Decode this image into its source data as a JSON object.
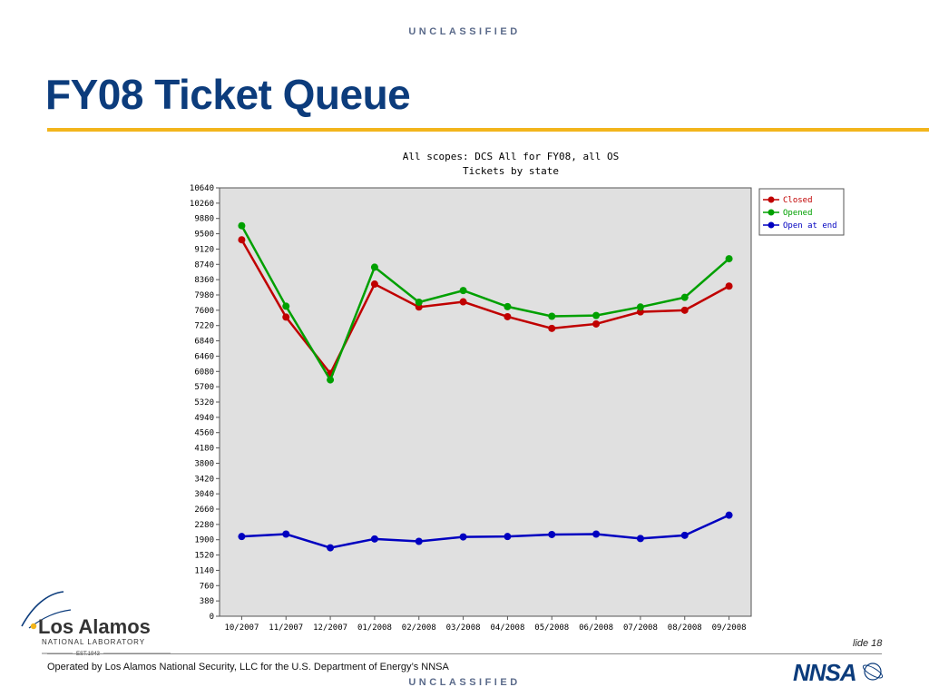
{
  "slide": {
    "classification_top": "UNCLASSIFIED",
    "classification_bottom": "UNCLASSIFIED",
    "title": "FY08 Ticket Queue",
    "slide_number": "lide 18",
    "footer_text": "Operated by Los Alamos National Security, LLC for the U.S. Department of Energy’s NNSA",
    "accent_color": "#f2b51c",
    "title_color": "#0c3c7c"
  },
  "logo": {
    "name": "Los Alamos",
    "sub": "NATIONAL LABORATORY",
    "est": "EST.1943"
  },
  "nnsa_logo": {
    "text": "NNSA"
  },
  "chart_data": {
    "type": "line",
    "title": "All scopes: DCS All for FY08, all OS",
    "subtitle": "Tickets by state",
    "xlabel": "",
    "ylabel": "",
    "categories": [
      "10/2007",
      "11/2007",
      "12/2007",
      "01/2008",
      "02/2008",
      "03/2008",
      "04/2008",
      "05/2008",
      "06/2008",
      "07/2008",
      "08/2008",
      "09/2008"
    ],
    "yticks": [
      0,
      380,
      760,
      1140,
      1520,
      1900,
      2280,
      2660,
      3040,
      3420,
      3800,
      4180,
      4560,
      4940,
      5320,
      5700,
      6080,
      6460,
      6840,
      7220,
      7600,
      7980,
      8360,
      8740,
      9120,
      9500,
      9880,
      10260,
      10640
    ],
    "ylim": [
      0,
      10640
    ],
    "grid": false,
    "legend_position": "top-right outside",
    "background": "#e0e0e0",
    "series": [
      {
        "name": "Closed",
        "color": "#c00000",
        "values": [
          9350,
          7430,
          6030,
          8250,
          7680,
          7810,
          7440,
          7150,
          7260,
          7560,
          7600,
          8200
        ]
      },
      {
        "name": "Opened",
        "color": "#00a000",
        "values": [
          9700,
          7700,
          5870,
          8670,
          7800,
          8090,
          7690,
          7450,
          7470,
          7680,
          7920,
          8880
        ]
      },
      {
        "name": "Open at end",
        "color": "#0000c0",
        "values": [
          1980,
          2040,
          1700,
          1920,
          1860,
          1970,
          1980,
          2030,
          2040,
          1930,
          2010,
          2510
        ]
      }
    ]
  }
}
